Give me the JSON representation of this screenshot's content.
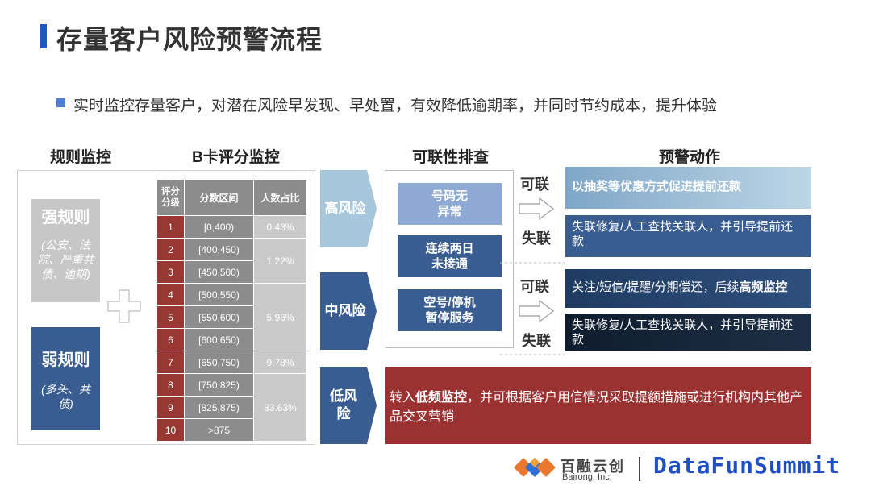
{
  "page": {
    "title": "存量客户风险预警流程",
    "bullet": "实时监控存量客户，对潜在风险早发现、早处置，有效降低逾期率，并同时节约成本，提升体验"
  },
  "columns": {
    "rule_monitor": "规则监控",
    "bcard_monitor": "B卡评分监控",
    "contact_check": "可联性排查",
    "warning_actions": "预警动作"
  },
  "rules": {
    "strong": {
      "name": "强规则",
      "desc": "(公安、法院、严重共债、逾期)"
    },
    "weak": {
      "name": "弱规则",
      "desc": "(多头、共债)"
    }
  },
  "score_table": {
    "headers": {
      "level": "评分分级",
      "range": "分数区间",
      "ratio": "人数占比"
    },
    "rows": [
      {
        "level": "1",
        "range": "[0,400)"
      },
      {
        "level": "2",
        "range": "[400,450)"
      },
      {
        "level": "3",
        "range": "[450,500)"
      },
      {
        "level": "4",
        "range": "[500,550)"
      },
      {
        "level": "5",
        "range": "[550,600)"
      },
      {
        "level": "6",
        "range": "[600,650)"
      },
      {
        "level": "7",
        "range": "[650,750)"
      },
      {
        "level": "8",
        "range": "[750,825)"
      },
      {
        "level": "9",
        "range": "[825,875)"
      },
      {
        "level": "10",
        "range": ">875"
      }
    ],
    "ratios": [
      "0.43%",
      "1.22%",
      "5.96%",
      "9.78%",
      "83.63%"
    ]
  },
  "risk_levels": {
    "high": "高风险",
    "mid": "中风险",
    "low": "低风险"
  },
  "contact_checks": [
    "号码无异常",
    "连续两日未接通",
    "空号/停机暂停服务"
  ],
  "contact_labels": {
    "reachable": "可联",
    "lost": "失联"
  },
  "actions": {
    "high_reachable": "以抽奖等优惠方式促进提前还款",
    "high_lost": "失联修复/人工查找关联人，并引导提前还款",
    "mid_reachable_prefix": "关注/短信/提醒/分期偿还，后续",
    "mid_reachable_strong": "高频监控",
    "mid_lost": "失联修复/人工查找关联人，并引导提前还款",
    "low_prefix": "转入",
    "low_strong": "低频监控",
    "low_suffix": "，并可根据客户用信情况采取提额措施或进行机构内其他产品交叉营销"
  },
  "footer": {
    "company_cn": "百融云创",
    "company_en": "Bairong, Inc.",
    "event": "DataFunSummit"
  },
  "colors": {
    "accent_blue": "#1f55c6",
    "dark_red": "#9b3232",
    "navy": "#3a5d91",
    "light_blue": "#a9c8dd"
  }
}
